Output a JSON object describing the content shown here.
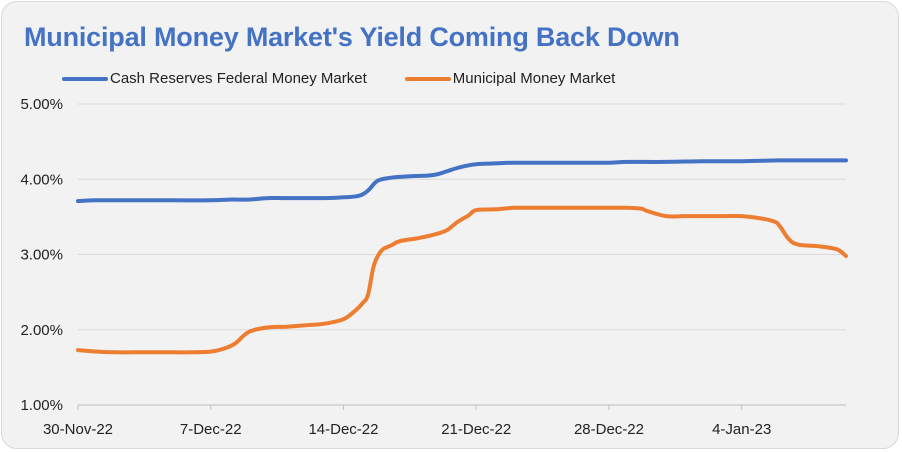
{
  "chart_data": {
    "type": "line",
    "title": "Municipal Money Market's Yield Coming Back Down",
    "xlabel": "",
    "ylabel": "",
    "ylim": [
      1.0,
      5.0
    ],
    "yticks": [
      "1.00%",
      "2.00%",
      "3.00%",
      "4.00%",
      "5.00%"
    ],
    "ytick_values": [
      1.0,
      2.0,
      3.0,
      4.0,
      5.0
    ],
    "xticks": [
      "30-Nov-22",
      "7-Dec-22",
      "14-Dec-22",
      "21-Dec-22",
      "28-Dec-22",
      "4-Jan-23"
    ],
    "xtick_days": [
      0,
      7,
      14,
      21,
      28,
      35
    ],
    "xlim_days": [
      0,
      40.5
    ],
    "grid": true,
    "legend_position": "top",
    "series": [
      {
        "name": "Cash Reserves Federal Money Market",
        "color": "#4472c4",
        "x": [
          0,
          1,
          3,
          5,
          7,
          8,
          9,
          10,
          11,
          13,
          14,
          14.8,
          15.3,
          15.8,
          16.5,
          17.5,
          18.5,
          19,
          19.5,
          20,
          20.5,
          21,
          22,
          23,
          25,
          27,
          28,
          29,
          31,
          33,
          35,
          37,
          39,
          40.5
        ],
        "y": [
          3.71,
          3.72,
          3.72,
          3.72,
          3.72,
          3.73,
          3.73,
          3.75,
          3.75,
          3.75,
          3.76,
          3.78,
          3.85,
          3.98,
          4.02,
          4.04,
          4.05,
          4.07,
          4.11,
          4.15,
          4.18,
          4.2,
          4.21,
          4.22,
          4.22,
          4.22,
          4.22,
          4.23,
          4.23,
          4.24,
          4.24,
          4.25,
          4.25,
          4.25
        ]
      },
      {
        "name": "Municipal Money Market",
        "color": "#ed7d31",
        "x": [
          0,
          1,
          2,
          3,
          4,
          5,
          6,
          7,
          7.7,
          8.3,
          9,
          10,
          11,
          12,
          13,
          14,
          14.6,
          15,
          15.3,
          15.6,
          16,
          16.5,
          17,
          18,
          19,
          19.5,
          20,
          20.6,
          21,
          22,
          23,
          24,
          25,
          26,
          27,
          28,
          29,
          29.7,
          30,
          31,
          32,
          33,
          34,
          35,
          36,
          36.7,
          37,
          37.5,
          38,
          39,
          40,
          40.5
        ],
        "y": [
          1.73,
          1.71,
          1.7,
          1.7,
          1.7,
          1.7,
          1.7,
          1.71,
          1.75,
          1.82,
          1.97,
          2.03,
          2.04,
          2.06,
          2.08,
          2.14,
          2.25,
          2.35,
          2.47,
          2.85,
          3.05,
          3.12,
          3.18,
          3.22,
          3.28,
          3.33,
          3.43,
          3.52,
          3.59,
          3.6,
          3.62,
          3.62,
          3.62,
          3.62,
          3.62,
          3.62,
          3.62,
          3.61,
          3.58,
          3.51,
          3.51,
          3.51,
          3.51,
          3.51,
          3.48,
          3.44,
          3.38,
          3.2,
          3.13,
          3.11,
          3.07,
          2.98
        ]
      }
    ]
  }
}
